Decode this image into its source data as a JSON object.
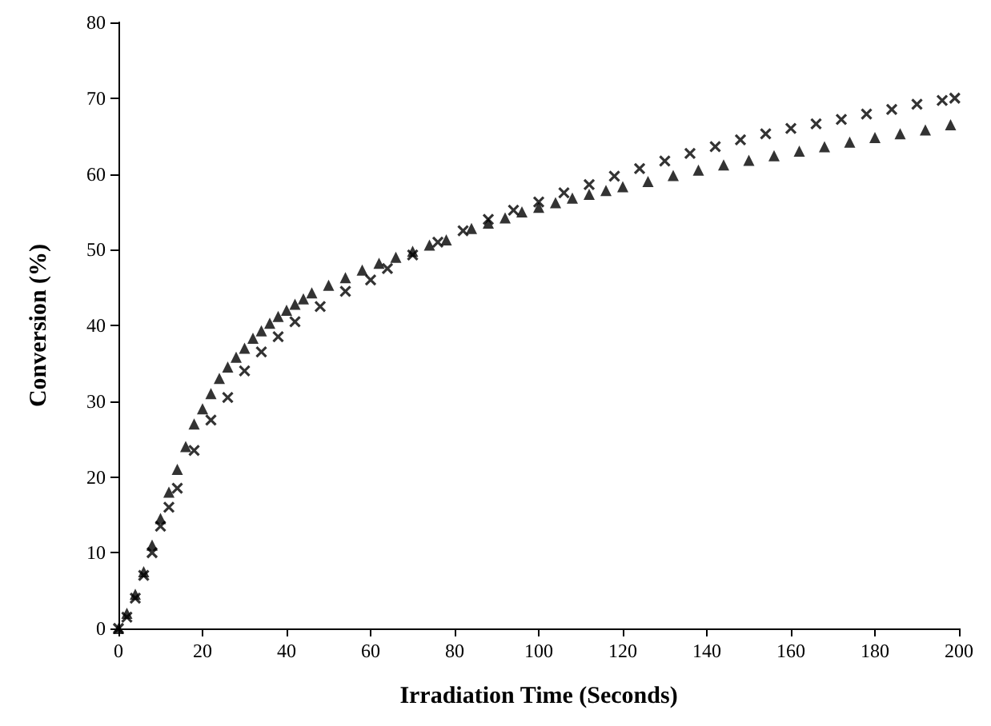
{
  "chart_data": {
    "type": "scatter",
    "xlabel": "Irradiation Time (Seconds)",
    "ylabel": "Conversion (%)",
    "xlim": [
      0,
      200
    ],
    "ylim": [
      0,
      80
    ],
    "xticks": [
      0,
      20,
      40,
      60,
      80,
      100,
      120,
      140,
      160,
      180,
      200
    ],
    "yticks": [
      0,
      10,
      20,
      30,
      40,
      50,
      60,
      70,
      80
    ],
    "series": [
      {
        "color": "#000000",
        "marker": "triangle",
        "x": [
          0,
          2,
          4,
          6,
          8,
          10,
          12,
          14,
          16,
          18,
          20,
          22,
          24,
          26,
          28,
          30,
          32,
          34,
          36,
          38,
          40,
          42,
          44,
          46,
          50,
          54,
          58,
          62,
          66,
          70,
          74,
          78,
          84,
          88,
          92,
          96,
          100,
          104,
          108,
          112,
          116,
          120,
          126,
          132,
          138,
          144,
          150,
          156,
          162,
          168,
          174,
          180,
          186,
          192,
          198
        ],
        "values": [
          0,
          2,
          4.5,
          7.5,
          11,
          14.5,
          18,
          21,
          24,
          27,
          29,
          31,
          33,
          34.5,
          35.8,
          37,
          38.3,
          39.3,
          40.3,
          41.2,
          42,
          42.8,
          43.5,
          44.3,
          45.3,
          46.3,
          47.3,
          48.2,
          49,
          49.8,
          50.6,
          51.3,
          52.8,
          53.5,
          54.2,
          55,
          55.6,
          56.2,
          56.8,
          57.3,
          57.8,
          58.3,
          59,
          59.8,
          60.5,
          61.2,
          61.8,
          62.4,
          63,
          63.6,
          64.2,
          64.8,
          65.3,
          65.8,
          66.5
        ]
      },
      {
        "color": "#000000",
        "marker": "cross",
        "x": [
          0,
          2,
          4,
          6,
          8,
          10,
          12,
          14,
          18,
          22,
          26,
          30,
          34,
          38,
          42,
          48,
          54,
          60,
          64,
          70,
          76,
          82,
          88,
          94,
          100,
          106,
          112,
          118,
          124,
          130,
          136,
          142,
          148,
          154,
          160,
          166,
          172,
          178,
          184,
          190,
          196,
          199
        ],
        "values": [
          0,
          1.5,
          4,
          7,
          10,
          13.5,
          16,
          18.5,
          23.5,
          27.5,
          30.5,
          34,
          36.5,
          38.5,
          40.5,
          42.5,
          44.5,
          46,
          47.5,
          49.3,
          51,
          52.5,
          54,
          55.2,
          56.3,
          57.5,
          58.6,
          59.7,
          60.7,
          61.7,
          62.7,
          63.6,
          64.5,
          65.3,
          66,
          66.6,
          67.2,
          67.9,
          68.5,
          69.2,
          69.7,
          70
        ]
      }
    ]
  }
}
